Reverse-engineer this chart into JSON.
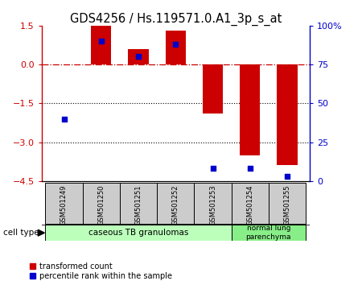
{
  "title": "GDS4256 / Hs.119571.0.A1_3p_s_at",
  "samples": [
    "GSM501249",
    "GSM501250",
    "GSM501251",
    "GSM501252",
    "GSM501253",
    "GSM501254",
    "GSM501255"
  ],
  "transformed_count": [
    0.0,
    1.5,
    0.6,
    1.3,
    -1.9,
    -3.5,
    -3.9
  ],
  "percentile_rank_pct": [
    40,
    90,
    80,
    88,
    8,
    8,
    3
  ],
  "ylim_left": [
    -4.5,
    1.5
  ],
  "yticks_left": [
    1.5,
    0,
    -1.5,
    -3,
    -4.5
  ],
  "ylim_right": [
    0,
    100
  ],
  "yticks_right": [
    100,
    75,
    50,
    25,
    0
  ],
  "bar_color": "#cc0000",
  "dot_color": "#0000cc",
  "hline_color": "#cc0000",
  "dotted_line_color": "#000000",
  "group1_label": "caseous TB granulomas",
  "group2_label": "normal lung\nparenchyma",
  "group1_color": "#bbffbb",
  "group2_color": "#88ee88",
  "label_box_color": "#cccccc",
  "cell_type_label": "cell type",
  "legend_red": "transformed count",
  "legend_blue": "percentile rank within the sample",
  "bar_width": 0.55,
  "title_fontsize": 10.5
}
